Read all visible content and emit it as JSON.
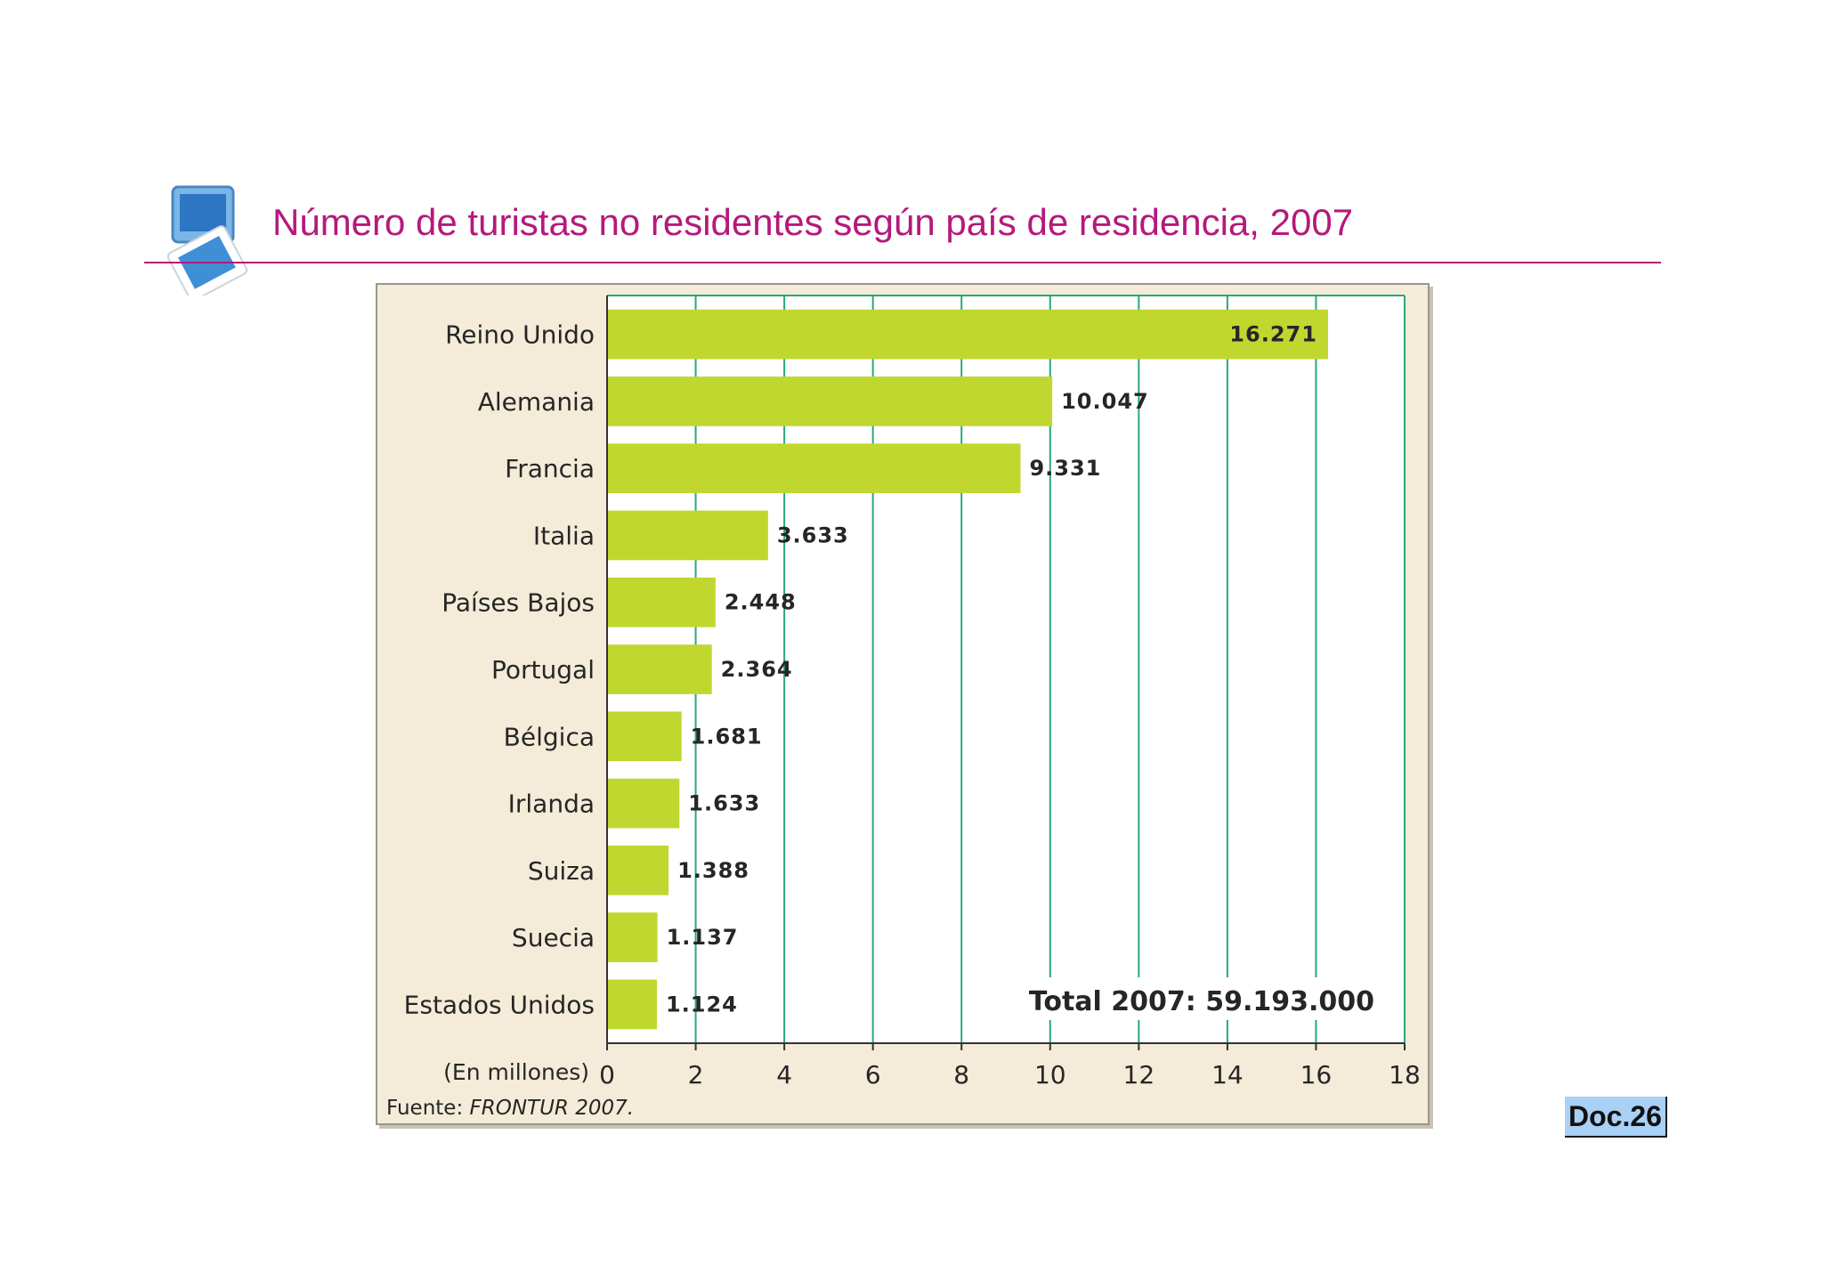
{
  "title": "Número de turistas no residentes según país de residencia, 2007",
  "badge": "Doc.26",
  "icon": "monitor-icon",
  "colors": {
    "title": "#b5197b",
    "bar": "#c0d72f",
    "grid": "#2aa87a",
    "panel": "#f4ecd8",
    "badge": "#a9d0f5"
  },
  "chart_data": {
    "type": "bar",
    "orientation": "horizontal",
    "categories": [
      "Reino Unido",
      "Alemania",
      "Francia",
      "Italia",
      "Países Bajos",
      "Portugal",
      "Bélgica",
      "Irlanda",
      "Suiza",
      "Suecia",
      "Estados Unidos"
    ],
    "values": [
      16.271,
      10.047,
      9.331,
      3.633,
      2.448,
      2.364,
      1.681,
      1.633,
      1.388,
      1.137,
      1.124
    ],
    "value_labels": [
      "16.271",
      "10.047",
      "9.331",
      "3.633",
      "2.448",
      "2.364",
      "1.681",
      "1.633",
      "1.388",
      "1.137",
      "1.124"
    ],
    "x_ticks": [
      "0",
      "2",
      "4",
      "6",
      "8",
      "10",
      "12",
      "14",
      "16",
      "18"
    ],
    "xlim": [
      0,
      18
    ],
    "xlabel": "(En millones)",
    "annotation": "Total 2007: 59.193.000",
    "source_prefix": "Fuente: ",
    "source_name": "FRONTUR 2007.",
    "grid": true
  }
}
